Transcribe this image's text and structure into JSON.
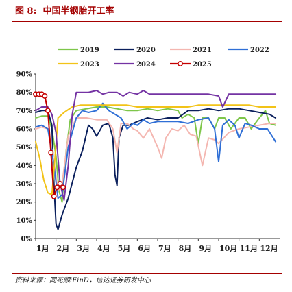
{
  "figure": {
    "label": "图 8:",
    "title": "中国半钢胎开工率",
    "source": "资料来源：同花顺iFinD，信达证券研发中心"
  },
  "chart_data": {
    "type": "line",
    "ylim": [
      0,
      90
    ],
    "yticks": [
      "0%",
      "10%",
      "20%",
      "30%",
      "40%",
      "50%",
      "60%",
      "70%",
      "80%",
      "90%"
    ],
    "xlim": [
      1,
      13
    ],
    "xticks": [
      {
        "x": 1,
        "label": "1月"
      },
      {
        "x": 2,
        "label": "2月"
      },
      {
        "x": 3,
        "label": "3月"
      },
      {
        "x": 4,
        "label": "4月"
      },
      {
        "x": 5,
        "label": "5月"
      },
      {
        "x": 6,
        "label": "6月"
      },
      {
        "x": 7,
        "label": "7月"
      },
      {
        "x": 8,
        "label": "8月"
      },
      {
        "x": 9,
        "label": "9月"
      },
      {
        "x": 10,
        "label": "10月"
      },
      {
        "x": 11,
        "label": "11月"
      },
      {
        "x": 12,
        "label": "12月"
      }
    ],
    "legend_position": "top",
    "grid": false,
    "series": [
      {
        "name": "2019",
        "color": "#7ec64a",
        "points": [
          [
            1.0,
            66
          ],
          [
            1.3,
            67
          ],
          [
            1.6,
            67
          ],
          [
            1.8,
            60
          ],
          [
            2.0,
            45
          ],
          [
            2.15,
            26
          ],
          [
            2.3,
            20
          ],
          [
            2.5,
            48
          ],
          [
            2.7,
            65
          ],
          [
            3.0,
            70
          ],
          [
            3.5,
            71
          ],
          [
            4.0,
            72
          ],
          [
            4.5,
            72
          ],
          [
            5.0,
            71
          ],
          [
            5.5,
            70
          ],
          [
            6.0,
            70
          ],
          [
            6.5,
            71
          ],
          [
            7.0,
            70
          ],
          [
            7.5,
            71
          ],
          [
            8.0,
            70
          ],
          [
            8.2,
            66
          ],
          [
            8.5,
            68
          ],
          [
            8.8,
            66
          ],
          [
            9.0,
            52
          ],
          [
            9.2,
            66
          ],
          [
            9.5,
            66
          ],
          [
            9.8,
            60
          ],
          [
            10.0,
            66
          ],
          [
            10.3,
            66
          ],
          [
            10.6,
            60
          ],
          [
            11.0,
            66
          ],
          [
            11.3,
            66
          ],
          [
            11.6,
            60
          ],
          [
            12.0,
            66
          ],
          [
            12.3,
            70
          ],
          [
            12.5,
            63
          ],
          [
            12.8,
            62
          ]
        ]
      },
      {
        "name": "2020",
        "color": "#0a1f5c",
        "points": [
          [
            1.0,
            69
          ],
          [
            1.3,
            70
          ],
          [
            1.6,
            70
          ],
          [
            1.8,
            62
          ],
          [
            1.9,
            30
          ],
          [
            2.0,
            8
          ],
          [
            2.1,
            5
          ],
          [
            2.3,
            13
          ],
          [
            2.6,
            22
          ],
          [
            3.0,
            39
          ],
          [
            3.3,
            48
          ],
          [
            3.6,
            62
          ],
          [
            3.8,
            60
          ],
          [
            4.0,
            56
          ],
          [
            4.3,
            62
          ],
          [
            4.6,
            63
          ],
          [
            4.8,
            55
          ],
          [
            4.9,
            35
          ],
          [
            5.0,
            29
          ],
          [
            5.1,
            55
          ],
          [
            5.3,
            62
          ],
          [
            5.6,
            62
          ],
          [
            6.0,
            64
          ],
          [
            6.5,
            66
          ],
          [
            7.0,
            65
          ],
          [
            7.5,
            66
          ],
          [
            8.0,
            66
          ],
          [
            8.5,
            70
          ],
          [
            9.0,
            70
          ],
          [
            9.5,
            71
          ],
          [
            10.0,
            70
          ],
          [
            10.5,
            71
          ],
          [
            11.0,
            71
          ],
          [
            11.5,
            70
          ],
          [
            12.0,
            69
          ],
          [
            12.5,
            68
          ],
          [
            12.8,
            66
          ]
        ]
      },
      {
        "name": "2021",
        "color": "#f4b6b0",
        "points": [
          [
            1.0,
            60
          ],
          [
            1.3,
            61
          ],
          [
            1.6,
            60
          ],
          [
            1.9,
            42
          ],
          [
            2.1,
            26
          ],
          [
            2.3,
            30
          ],
          [
            2.6,
            56
          ],
          [
            3.0,
            66
          ],
          [
            3.5,
            66
          ],
          [
            4.0,
            65
          ],
          [
            4.5,
            65
          ],
          [
            4.8,
            60
          ],
          [
            5.0,
            47
          ],
          [
            5.2,
            63
          ],
          [
            5.5,
            63
          ],
          [
            5.8,
            60
          ],
          [
            6.0,
            59
          ],
          [
            6.3,
            55
          ],
          [
            6.6,
            60
          ],
          [
            7.0,
            50
          ],
          [
            7.2,
            44
          ],
          [
            7.4,
            55
          ],
          [
            7.7,
            60
          ],
          [
            8.0,
            59
          ],
          [
            8.3,
            62
          ],
          [
            8.6,
            57
          ],
          [
            8.9,
            56
          ],
          [
            9.2,
            40
          ],
          [
            9.5,
            55
          ],
          [
            9.8,
            54
          ],
          [
            10.0,
            52
          ],
          [
            10.5,
            58
          ],
          [
            11.0,
            60
          ],
          [
            11.5,
            61
          ],
          [
            12.0,
            62
          ],
          [
            12.5,
            63
          ],
          [
            12.8,
            63
          ]
        ]
      },
      {
        "name": "2022",
        "color": "#2f6fd6",
        "points": [
          [
            1.0,
            61
          ],
          [
            1.3,
            62
          ],
          [
            1.6,
            60
          ],
          [
            1.9,
            40
          ],
          [
            2.1,
            22
          ],
          [
            2.3,
            24
          ],
          [
            2.6,
            50
          ],
          [
            3.0,
            66
          ],
          [
            3.3,
            70
          ],
          [
            3.6,
            69
          ],
          [
            4.0,
            70
          ],
          [
            4.3,
            74
          ],
          [
            4.6,
            70
          ],
          [
            4.9,
            68
          ],
          [
            5.2,
            66
          ],
          [
            5.5,
            60
          ],
          [
            5.8,
            63
          ],
          [
            6.0,
            62
          ],
          [
            6.3,
            65
          ],
          [
            6.6,
            63
          ],
          [
            7.0,
            64
          ],
          [
            7.5,
            64
          ],
          [
            8.0,
            64
          ],
          [
            8.5,
            63
          ],
          [
            9.0,
            65
          ],
          [
            9.5,
            66
          ],
          [
            9.8,
            60
          ],
          [
            10.0,
            42
          ],
          [
            10.2,
            62
          ],
          [
            10.5,
            65
          ],
          [
            10.8,
            62
          ],
          [
            11.0,
            55
          ],
          [
            11.3,
            63
          ],
          [
            11.6,
            62
          ],
          [
            12.0,
            60
          ],
          [
            12.4,
            60
          ],
          [
            12.8,
            53
          ]
        ]
      },
      {
        "name": "2023",
        "color": "#f2c318",
        "points": [
          [
            1.0,
            53
          ],
          [
            1.2,
            44
          ],
          [
            1.4,
            32
          ],
          [
            1.6,
            25
          ],
          [
            1.8,
            24
          ],
          [
            1.95,
            44
          ],
          [
            2.1,
            66
          ],
          [
            2.4,
            69
          ],
          [
            2.8,
            72
          ],
          [
            3.2,
            73
          ],
          [
            3.6,
            73
          ],
          [
            4.0,
            73
          ],
          [
            4.5,
            73
          ],
          [
            5.0,
            73
          ],
          [
            5.5,
            73
          ],
          [
            6.0,
            72
          ],
          [
            6.5,
            72
          ],
          [
            7.0,
            72
          ],
          [
            7.5,
            72
          ],
          [
            8.0,
            72
          ],
          [
            8.5,
            72
          ],
          [
            9.0,
            73
          ],
          [
            9.5,
            73
          ],
          [
            10.0,
            73
          ],
          [
            10.5,
            73
          ],
          [
            11.0,
            73
          ],
          [
            11.5,
            73
          ],
          [
            12.0,
            72
          ],
          [
            12.5,
            72
          ],
          [
            12.8,
            72
          ]
        ]
      },
      {
        "name": "2024",
        "color": "#7433a3",
        "points": [
          [
            1.0,
            70
          ],
          [
            1.3,
            72
          ],
          [
            1.6,
            72
          ],
          [
            1.8,
            68
          ],
          [
            2.0,
            58
          ],
          [
            2.2,
            30
          ],
          [
            2.4,
            21
          ],
          [
            2.6,
            40
          ],
          [
            2.8,
            68
          ],
          [
            3.0,
            80
          ],
          [
            3.3,
            80
          ],
          [
            3.6,
            80
          ],
          [
            4.0,
            81
          ],
          [
            4.3,
            79
          ],
          [
            4.6,
            80
          ],
          [
            5.0,
            80
          ],
          [
            5.3,
            78
          ],
          [
            5.6,
            80
          ],
          [
            6.0,
            79
          ],
          [
            6.3,
            81
          ],
          [
            6.6,
            79
          ],
          [
            7.0,
            79
          ],
          [
            7.5,
            79
          ],
          [
            8.0,
            79
          ],
          [
            8.5,
            79
          ],
          [
            9.0,
            79
          ],
          [
            9.5,
            79
          ],
          [
            10.0,
            78
          ],
          [
            10.2,
            72
          ],
          [
            10.5,
            79
          ],
          [
            11.0,
            79
          ],
          [
            11.5,
            79
          ],
          [
            12.0,
            79
          ],
          [
            12.5,
            79
          ],
          [
            12.8,
            79
          ]
        ]
      },
      {
        "name": "2025",
        "color": "#c40000",
        "markers": true,
        "points": [
          [
            1.0,
            79
          ],
          [
            1.15,
            79
          ],
          [
            1.3,
            79
          ],
          [
            1.45,
            78
          ],
          [
            1.6,
            70
          ],
          [
            1.75,
            47
          ],
          [
            1.9,
            23
          ],
          [
            2.05,
            28
          ],
          [
            2.2,
            30
          ],
          [
            2.35,
            28
          ]
        ]
      }
    ]
  }
}
